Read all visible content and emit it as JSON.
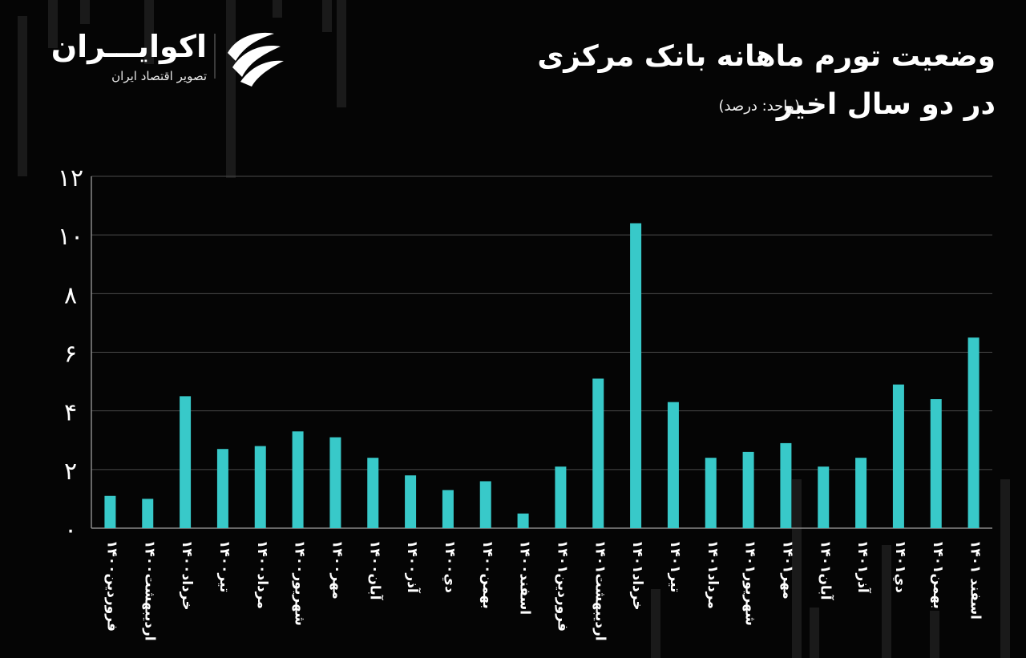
{
  "brand": {
    "name": "اکوایـــران",
    "tagline": "تصویر اقتصاد ایران"
  },
  "title": {
    "line1": "وضعیت تورم ماهانه بانک مرکزی",
    "line2": "در دو سال اخیر",
    "unit": "(واحد: درصد)"
  },
  "colors": {
    "bar": "#38c9c9",
    "background": "#050505",
    "grid": "#4a4a4a",
    "text": "#ffffff"
  },
  "chart_data": {
    "type": "bar",
    "categories": [
      "فروردین۱۴۰۰",
      "اردیبهشت۱۴۰۰",
      "خرداد۱۴۰۰",
      "تیر۱۴۰۰",
      "مرداد۱۴۰۰",
      "شهریور۱۴۰۰",
      "مهر۱۴۰۰",
      "آبان۱۴۰۰",
      "آذر۱۴۰۰",
      "دي۱۴۰۰",
      "بهمن۱۴۰۰",
      "اسفند۱۴۰۰",
      "فروردین۱۴۰۱",
      "اردیبهشت۱۴۰۱",
      "خرداد۱۴۰۱",
      "تیر۱۴۰۱",
      "مرداد۱۴۰۱",
      "شهریور۱۴۰۱",
      "مهر۱۴۰۱",
      "آبان۱۴۰۱",
      "آذر۱۴۰۱",
      "دي۱۴۰۱",
      "بهمن۱۴۰۱",
      "اسفند ۱۴۰۱"
    ],
    "values": [
      1.1,
      1.0,
      4.5,
      2.7,
      2.8,
      3.3,
      3.1,
      2.4,
      1.8,
      1.3,
      1.6,
      0.5,
      2.1,
      5.1,
      10.4,
      4.3,
      2.4,
      2.6,
      2.9,
      2.1,
      2.4,
      4.9,
      4.4,
      6.5
    ],
    "y_ticks": [
      "۰",
      "۲",
      "۴",
      "۶",
      "۸",
      "۱۰",
      "۱۲"
    ],
    "y_tick_values": [
      0,
      2,
      4,
      6,
      8,
      10,
      12
    ],
    "ylim": [
      0,
      12
    ],
    "grid": true,
    "xlabel": "",
    "ylabel": ""
  }
}
